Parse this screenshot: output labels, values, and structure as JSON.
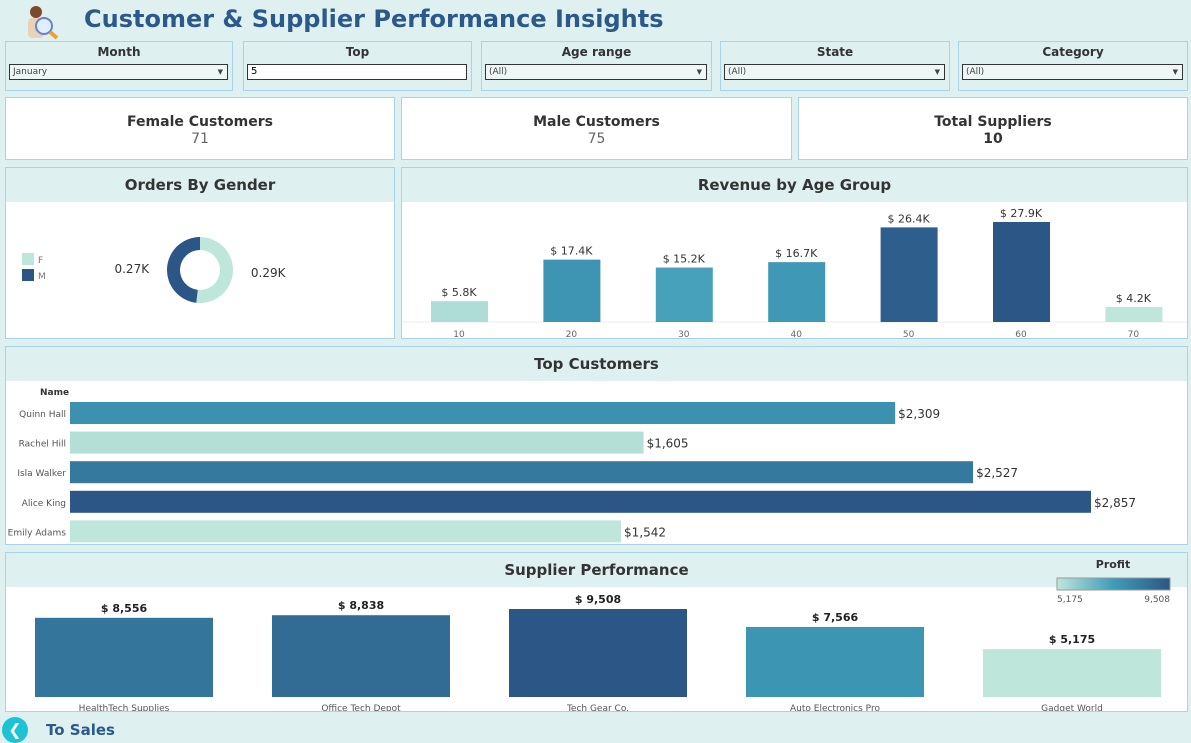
{
  "header": {
    "title": "Customer & Supplier Performance Insights",
    "logo_icon": "customer-search-icon"
  },
  "filters": [
    {
      "label": "Month",
      "value": "January",
      "type": "dropdown"
    },
    {
      "label": "Top",
      "value": "5",
      "type": "input"
    },
    {
      "label": "Age range",
      "value": "(All)",
      "type": "dropdown"
    },
    {
      "label": "State",
      "value": "(All)",
      "type": "dropdown"
    },
    {
      "label": "Category",
      "value": "(All)",
      "type": "dropdown"
    }
  ],
  "kpis": [
    {
      "label": "Female Customers",
      "value": "71"
    },
    {
      "label": "Male Customers",
      "value": "75"
    },
    {
      "label": "Total Suppliers",
      "value": "10"
    }
  ],
  "colors": {
    "light": "#bfe6da",
    "mid": "#3f9cb9",
    "dark": "#2c5685",
    "border": "#a9d3e8",
    "title": "#2b5a8a",
    "nav": "#1bc3d4"
  },
  "chart_data": [
    {
      "type": "pie",
      "title": "Orders By Gender",
      "donut": true,
      "legend_placement": "left",
      "categories": [
        "F",
        "M"
      ],
      "values": [
        290,
        270
      ],
      "labels": [
        "0.29K",
        "0.27K"
      ],
      "colors": [
        "#bfe6da",
        "#2c5685"
      ]
    },
    {
      "type": "bar",
      "title": "Revenue by Age Group",
      "categories": [
        "10",
        "20",
        "30",
        "40",
        "50",
        "60",
        "70"
      ],
      "values": [
        5.8,
        17.4,
        15.2,
        16.7,
        26.4,
        27.9,
        4.2
      ],
      "labels": [
        "$ 5.8K",
        "$ 17.4K",
        "$ 15.2K",
        "$ 16.7K",
        "$ 26.4K",
        "$ 27.9K",
        "$ 4.2K"
      ],
      "unit": "K",
      "ylim": [
        0,
        27.9
      ],
      "grid": false
    },
    {
      "type": "bar",
      "orientation": "horizontal",
      "title": "Top Customers",
      "ylabel": "Name",
      "categories": [
        "Quinn Hall",
        "Rachel Hill",
        "Isla Walker",
        "Alice King",
        "Emily Adams"
      ],
      "values": [
        2309,
        1605,
        2527,
        2857,
        1542
      ],
      "labels": [
        "$2,309",
        "$1,605",
        "$2,527",
        "$2,857",
        "$1,542"
      ],
      "grid": false
    },
    {
      "type": "bar",
      "title": "Supplier Performance",
      "categories": [
        "HealthTech Supplies",
        "Office Tech Depot",
        "Tech Gear Co.",
        "Auto Electronics Pro",
        "Gadget World"
      ],
      "values": [
        8556,
        8838,
        9508,
        7566,
        5175
      ],
      "labels": [
        "$ 8,556",
        "$ 8,838",
        "$ 9,508",
        "$ 7,566",
        "$ 5,175"
      ],
      "legend": {
        "title": "Profit",
        "min_label": "5,175",
        "max_label": "9,508",
        "placement": "top-right"
      },
      "grid": false
    }
  ],
  "nav": {
    "back_label": "To Sales"
  }
}
